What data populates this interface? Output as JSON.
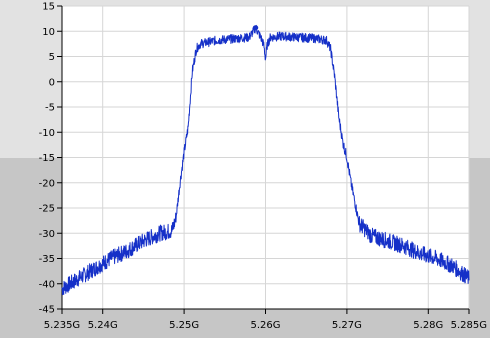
{
  "chart_data": {
    "type": "line",
    "title": "",
    "xlabel": "",
    "ylabel": "",
    "xlim": [
      5.235,
      5.285
    ],
    "ylim": [
      -45,
      15
    ],
    "grid": true,
    "x_ticks": [
      5.235,
      5.24,
      5.25,
      5.26,
      5.27,
      5.28,
      5.285
    ],
    "x_tick_labels": [
      "5.235G",
      "5.24G",
      "5.25G",
      "5.26G",
      "5.27G",
      "5.28G",
      "5.285G"
    ],
    "y_ticks": [
      15,
      10,
      5,
      0,
      -5,
      -10,
      -15,
      -20,
      -25,
      -30,
      -35,
      -40,
      -45
    ],
    "y_tick_labels": [
      "15",
      "10",
      "5",
      "0",
      "-5",
      "-10",
      "-15",
      "-20",
      "-25",
      "-30",
      "-35",
      "-40",
      "-45"
    ],
    "colors": {
      "line": "#1530c8",
      "plot_background": "#ffffff",
      "grid": "#d6d6d6"
    },
    "series": [
      {
        "x": [
          5.235,
          5.237,
          5.239,
          5.241,
          5.243,
          5.245,
          5.247,
          5.2485,
          5.249,
          5.2495,
          5.25,
          5.2505,
          5.251,
          5.2515,
          5.252,
          5.254,
          5.256,
          5.258,
          5.2588,
          5.2595,
          5.2598,
          5.26,
          5.2602,
          5.2606,
          5.262,
          5.264,
          5.266,
          5.2675,
          5.268,
          5.2685,
          5.269,
          5.2695,
          5.27,
          5.2705,
          5.271,
          5.2715,
          5.273,
          5.275,
          5.277,
          5.279,
          5.281,
          5.283,
          5.285
        ],
        "y": [
          -41,
          -39,
          -37,
          -35,
          -33.5,
          -31.5,
          -30,
          -29.5,
          -27,
          -20,
          -14,
          -9,
          2,
          6.5,
          7.5,
          8.2,
          8.5,
          8.8,
          10.7,
          8.5,
          7.2,
          4.5,
          7.2,
          8.8,
          9,
          8.8,
          8.6,
          8.2,
          6.5,
          1,
          -7,
          -12,
          -15,
          -20,
          -24,
          -28,
          -30.5,
          -31.5,
          -32.5,
          -34,
          -35,
          -36.5,
          -39
        ]
      }
    ]
  }
}
